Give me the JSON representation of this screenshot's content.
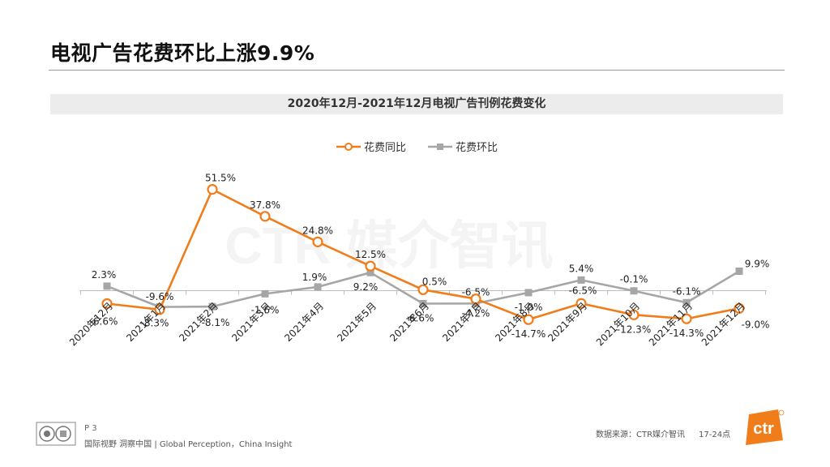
{
  "page": {
    "title": "电视广告花费环比上涨9.9%",
    "watermark": "CTR 媒介智讯"
  },
  "chart_data": {
    "type": "line",
    "title": "2020年12月-2021年12月电视广告刊例花费变化",
    "categories": [
      "2020年12月",
      "2021年1月",
      "2021年2月",
      "2021年3月",
      "2021年4月",
      "2021年5月",
      "2021年6月",
      "2021年7月",
      "2021年8月",
      "2021年9月",
      "2021年10月",
      "2021年11月",
      "2021年12月"
    ],
    "series": [
      {
        "name": "花费同比",
        "color": "#f07d1a",
        "marker": "circle",
        "values": [
          -6.6,
          -9.6,
          51.5,
          37.8,
          24.8,
          12.5,
          0.5,
          -4.2,
          -14.7,
          -6.5,
          -12.3,
          -14.3,
          -9.0
        ],
        "labels": [
          "-6.6%",
          "-9.6%",
          "51.5%",
          "37.8%",
          "24.8%",
          "12.5%",
          "0.5%",
          "-4.2%",
          "-14.7%",
          "-6.5%",
          "-12.3%",
          "-14.3%",
          "-9.0%"
        ]
      },
      {
        "name": "花费环比",
        "color": "#a6a6a6",
        "marker": "square",
        "values": [
          2.3,
          -8.3,
          -8.1,
          -1.6,
          1.9,
          9.2,
          -6.6,
          -6.5,
          -1.0,
          5.4,
          -0.1,
          -6.1,
          9.9
        ],
        "labels": [
          "2.3%",
          "-8.3%",
          "-8.1%",
          "-1.6%",
          "1.9%",
          "9.2%",
          "-6.6%",
          "-6.5%",
          "-1.0%",
          "5.4%",
          "-0.1%",
          "-6.1%",
          "9.9%"
        ]
      }
    ],
    "ylim": [
      -20,
      60
    ],
    "legend": "top-center",
    "grid": false
  },
  "footer": {
    "page_number": "P 3",
    "slogan": "国际视野  洞察中国 | Global Perception，China Insight",
    "source": "数据来源：CTR媒介智讯",
    "time_band": "17-24点",
    "logo_text": "ctr"
  }
}
